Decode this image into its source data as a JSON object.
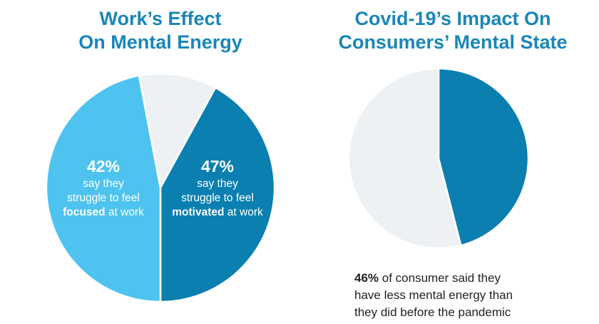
{
  "chart_data": [
    {
      "type": "pie",
      "title_line1": "Work’s Effect",
      "title_line2": "On Mental Energy",
      "slices": [
        {
          "label": "focused",
          "value": 42,
          "color": "#0a7fb0"
        },
        {
          "label": "motivated",
          "value": 47,
          "color": "#4ec3ef"
        },
        {
          "label": "",
          "value": 11,
          "color": "#eef1f4"
        }
      ],
      "labels": [
        {
          "pct": "42%",
          "line1": "say they",
          "line2": "struggle to feel",
          "bold": "focused",
          "rest": " at work"
        },
        {
          "pct": "47%",
          "line1": "say they",
          "line2": "struggle to feel",
          "bold": "motivated",
          "rest": " at work"
        }
      ]
    },
    {
      "type": "pie",
      "title_line1": "Covid-19’s Impact On",
      "title_line2": "Consumers’ Mental State",
      "slices": [
        {
          "label": "less mental energy",
          "value": 46,
          "color": "#0a7fb0"
        },
        {
          "label": "",
          "value": 54,
          "color": "#eef1f4"
        }
      ],
      "caption": {
        "bold": "46%",
        "line1_rest": " of consumer said they",
        "line2": "have less mental energy than",
        "line3": "they did before the pandemic"
      }
    }
  ]
}
